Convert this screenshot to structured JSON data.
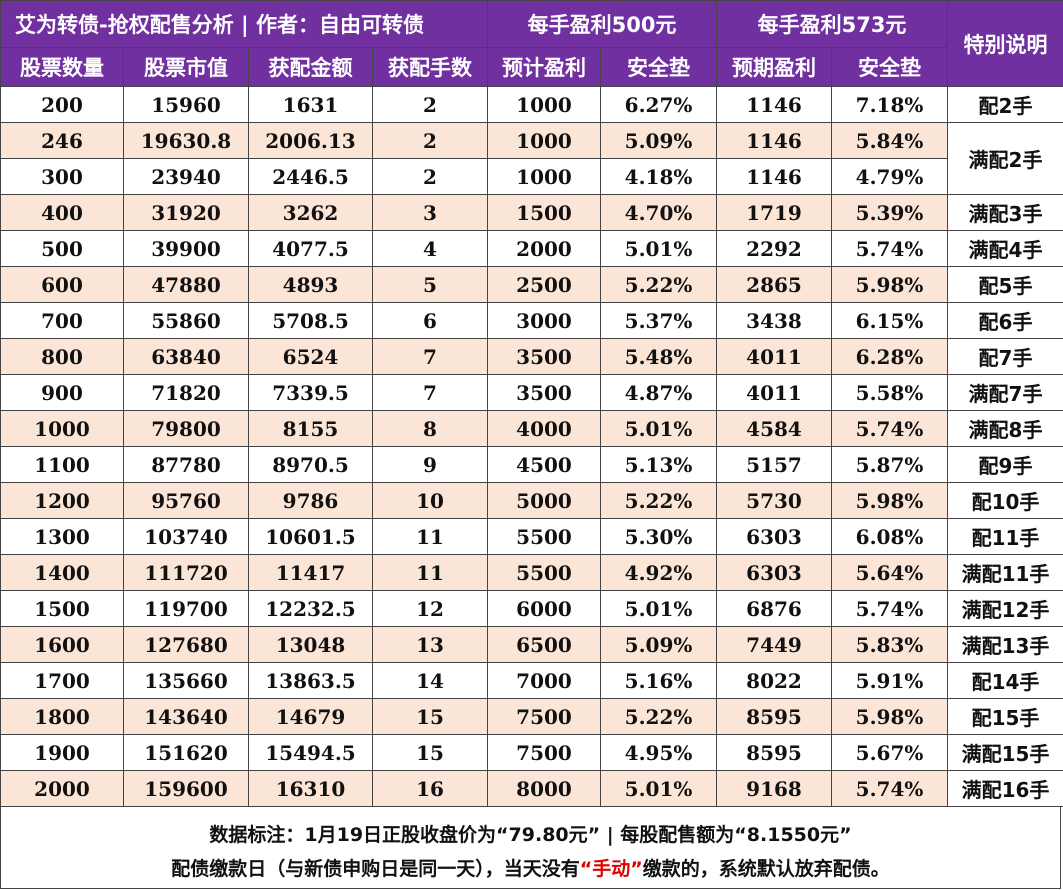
{
  "header": {
    "title": "艾为转债-抢权配售分析 | 作者：自由可转债",
    "group_500": "每手盈利500元",
    "group_573": "每手盈利573元",
    "special": "特别说明",
    "columns": [
      "股票数量",
      "股票市值",
      "获配金额",
      "获配手数",
      "预计盈利",
      "安全垫",
      "预期盈利",
      "安全垫"
    ]
  },
  "rows": [
    [
      "200",
      "15960",
      "1631",
      "2",
      "1000",
      "6.27%",
      "1146",
      "7.18%"
    ],
    [
      "246",
      "19630.8",
      "2006.13",
      "2",
      "1000",
      "5.09%",
      "1146",
      "5.84%"
    ],
    [
      "300",
      "23940",
      "2446.5",
      "2",
      "1000",
      "4.18%",
      "1146",
      "4.79%"
    ],
    [
      "400",
      "31920",
      "3262",
      "3",
      "1500",
      "4.70%",
      "1719",
      "5.39%"
    ],
    [
      "500",
      "39900",
      "4077.5",
      "4",
      "2000",
      "5.01%",
      "2292",
      "5.74%"
    ],
    [
      "600",
      "47880",
      "4893",
      "5",
      "2500",
      "5.22%",
      "2865",
      "5.98%"
    ],
    [
      "700",
      "55860",
      "5708.5",
      "6",
      "3000",
      "5.37%",
      "3438",
      "6.15%"
    ],
    [
      "800",
      "63840",
      "6524",
      "7",
      "3500",
      "5.48%",
      "4011",
      "6.28%"
    ],
    [
      "900",
      "71820",
      "7339.5",
      "7",
      "3500",
      "4.87%",
      "4011",
      "5.58%"
    ],
    [
      "1000",
      "79800",
      "8155",
      "8",
      "4000",
      "5.01%",
      "4584",
      "5.74%"
    ],
    [
      "1100",
      "87780",
      "8970.5",
      "9",
      "4500",
      "5.13%",
      "5157",
      "5.87%"
    ],
    [
      "1200",
      "95760",
      "9786",
      "10",
      "5000",
      "5.22%",
      "5730",
      "5.98%"
    ],
    [
      "1300",
      "103740",
      "10601.5",
      "11",
      "5500",
      "5.30%",
      "6303",
      "6.08%"
    ],
    [
      "1400",
      "111720",
      "11417",
      "11",
      "5500",
      "4.92%",
      "6303",
      "5.64%"
    ],
    [
      "1500",
      "119700",
      "12232.5",
      "12",
      "6000",
      "5.01%",
      "6876",
      "5.74%"
    ],
    [
      "1600",
      "127680",
      "13048",
      "13",
      "6500",
      "5.09%",
      "7449",
      "5.83%"
    ],
    [
      "1700",
      "135660",
      "13863.5",
      "14",
      "7000",
      "5.16%",
      "8022",
      "5.91%"
    ],
    [
      "1800",
      "143640",
      "14679",
      "15",
      "7500",
      "5.22%",
      "8595",
      "5.98%"
    ],
    [
      "1900",
      "151620",
      "15494.5",
      "15",
      "7500",
      "4.95%",
      "8595",
      "5.67%"
    ],
    [
      "2000",
      "159600",
      "16310",
      "16",
      "8000",
      "5.01%",
      "9168",
      "5.74%"
    ]
  ],
  "notes": [
    {
      "text": "配2手",
      "span": 1
    },
    {
      "text": "满配2手",
      "span": 2
    },
    {
      "text": "满配3手",
      "span": 1
    },
    {
      "text": "满配4手",
      "span": 1
    },
    {
      "text": "配5手",
      "span": 1
    },
    {
      "text": "配6手",
      "span": 1
    },
    {
      "text": "配7手",
      "span": 1
    },
    {
      "text": "满配7手",
      "span": 1
    },
    {
      "text": "满配8手",
      "span": 1
    },
    {
      "text": "配9手",
      "span": 1
    },
    {
      "text": "配10手",
      "span": 1
    },
    {
      "text": "配11手",
      "span": 1
    },
    {
      "text": "满配11手",
      "span": 1
    },
    {
      "text": "满配12手",
      "span": 1
    },
    {
      "text": "满配13手",
      "span": 1
    },
    {
      "text": "配14手",
      "span": 1
    },
    {
      "text": "配15手",
      "span": 1
    },
    {
      "text": "满配15手",
      "span": 1
    },
    {
      "text": "满配16手",
      "span": 1
    }
  ],
  "footer": {
    "line1": "数据标注：1月19日正股收盘价为“79.80元” | 每股配售额为“8.1550元”",
    "line2_before": "配债缴款日（与新债申购日是同一天），当天没有",
    "line2_highlight": "“手动”",
    "line2_after": "缴款的，系统默认放弃配债。"
  },
  "colors": {
    "header_bg": "#7030a0",
    "header_text": "#ffffff",
    "alt_row_bg": "#fbe5d6",
    "highlight_red": "#e00000"
  }
}
